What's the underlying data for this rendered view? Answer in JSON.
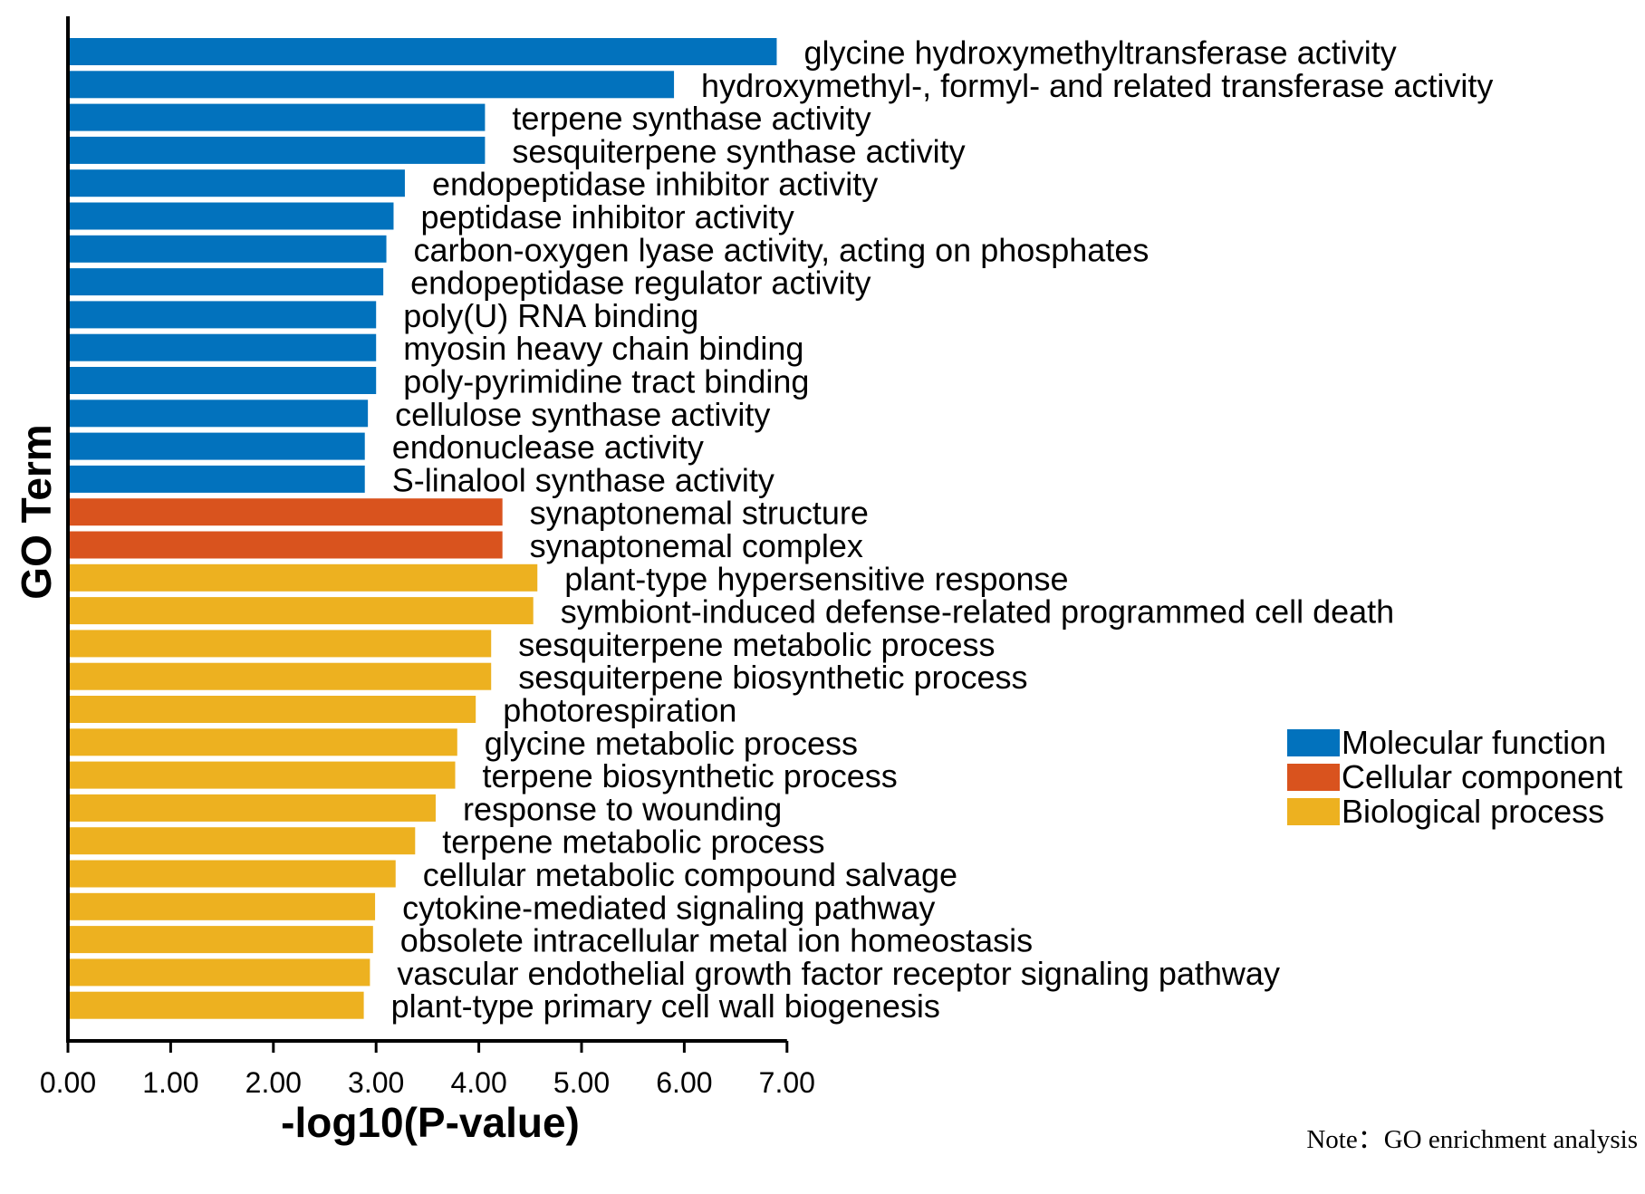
{
  "chart_data": {
    "type": "bar",
    "orientation": "horizontal",
    "xlabel": "-log10(P-value)",
    "ylabel": "GO Term",
    "xlim": [
      0,
      7
    ],
    "x_ticks": [
      "0.00",
      "1.00",
      "2.00",
      "3.00",
      "4.00",
      "5.00",
      "6.00",
      "7.00"
    ],
    "grid": false,
    "legend_position": "right",
    "colors": {
      "Molecular function": "#0272bd",
      "Cellular component": "#d9531e",
      "Biological process": "#edb120"
    },
    "legend": [
      "Molecular function",
      "Cellular component",
      "Biological process"
    ],
    "categories": [
      "glycine hydroxymethyltransferase activity",
      "hydroxymethyl-, formyl- and related transferase activity",
      "terpene synthase activity",
      "sesquiterpene synthase activity",
      "endopeptidase inhibitor activity",
      "peptidase inhibitor activity",
      "carbon-oxygen lyase activity, acting on phosphates",
      "endopeptidase regulator activity",
      "poly(U) RNA binding",
      "myosin heavy chain binding",
      "poly-pyrimidine tract binding",
      "cellulose synthase activity",
      "endonuclease activity",
      "S-linalool synthase activity",
      "synaptonemal structure",
      "synaptonemal complex",
      "plant-type hypersensitive response",
      "symbiont-induced defense-related programmed cell death",
      "sesquiterpene metabolic process",
      "sesquiterpene biosynthetic process",
      "photorespiration",
      "glycine metabolic process",
      "terpene biosynthetic process",
      "response to wounding",
      "terpene metabolic process",
      "cellular metabolic compound salvage",
      "cytokine-mediated signaling pathway",
      "obsolete intracellular metal ion homeostasis",
      "vascular endothelial growth factor receptor signaling pathway",
      "plant-type primary cell wall biogenesis"
    ],
    "values": [
      6.9,
      5.9,
      4.06,
      4.06,
      3.28,
      3.17,
      3.1,
      3.07,
      3.0,
      3.0,
      3.0,
      2.92,
      2.89,
      2.89,
      4.23,
      4.23,
      4.57,
      4.53,
      4.12,
      4.12,
      3.97,
      3.79,
      3.77,
      3.58,
      3.38,
      3.19,
      2.99,
      2.97,
      2.94,
      2.88
    ],
    "groups": [
      "Molecular function",
      "Molecular function",
      "Molecular function",
      "Molecular function",
      "Molecular function",
      "Molecular function",
      "Molecular function",
      "Molecular function",
      "Molecular function",
      "Molecular function",
      "Molecular function",
      "Molecular function",
      "Molecular function",
      "Molecular function",
      "Cellular component",
      "Cellular component",
      "Biological process",
      "Biological process",
      "Biological process",
      "Biological process",
      "Biological process",
      "Biological process",
      "Biological process",
      "Biological process",
      "Biological process",
      "Biological process",
      "Biological process",
      "Biological process",
      "Biological process",
      "Biological process"
    ]
  },
  "note": "Note：GO enrichment analysis"
}
